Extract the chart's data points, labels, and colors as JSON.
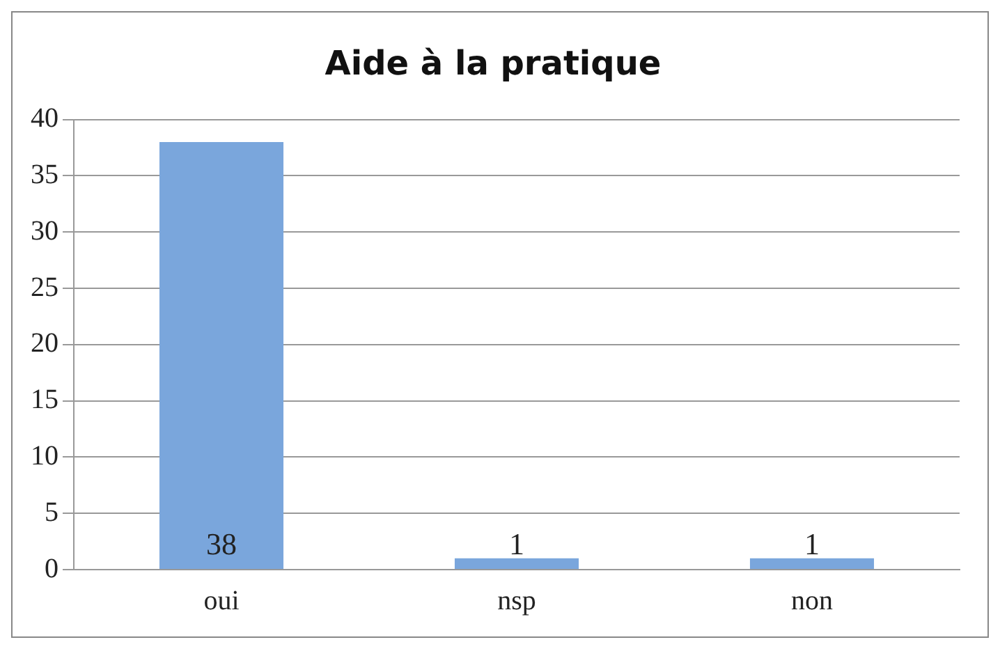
{
  "chart_data": {
    "type": "bar",
    "title": "Aide à la pratique",
    "categories": [
      "oui",
      "nsp",
      "non"
    ],
    "values": [
      38,
      1,
      1
    ],
    "color": "#7aa6dc",
    "ylim": [
      0,
      40
    ],
    "yticks": [
      0,
      5,
      10,
      15,
      20,
      25,
      30,
      35,
      40
    ],
    "grid": "y",
    "data_labels": true,
    "legend": false
  }
}
